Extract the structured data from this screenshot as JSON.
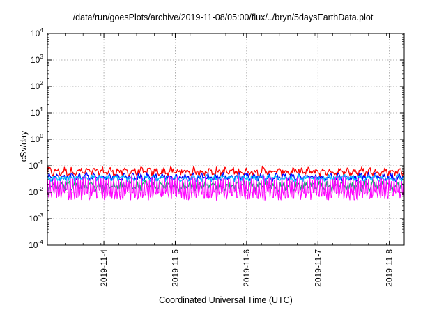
{
  "chart_data": {
    "type": "line",
    "title": "/data/run/goesPlots/archive/2019-11-08/05:00/flux/../bryn/5daysEarthData.plot",
    "xlabel": "Coordinated Universal Time (UTC)",
    "ylabel": "cSv/day",
    "yscale": "log",
    "ylim": [
      0.0001,
      10000
    ],
    "ytick_labels": [
      {
        "base": "10",
        "exp": "-4"
      },
      {
        "base": "10",
        "exp": "-3"
      },
      {
        "base": "10",
        "exp": "-2"
      },
      {
        "base": "10",
        "exp": "-1"
      },
      {
        "base": "10",
        "exp": "0"
      },
      {
        "base": "10",
        "exp": "1"
      },
      {
        "base": "10",
        "exp": "2"
      },
      {
        "base": "10",
        "exp": "3"
      },
      {
        "base": "10",
        "exp": "4"
      }
    ],
    "xlim": [
      "2019-11-03T05:00",
      "2019-11-08T05:00"
    ],
    "xtick_labels": [
      "2019-11-4",
      "2019-11-5",
      "2019-11-6",
      "2019-11-7",
      "2019-11-8"
    ],
    "grid": true,
    "series": [
      {
        "color": "#ff0000",
        "approx_range": [
          0.03,
          0.1
        ]
      },
      {
        "color": "#0000ff",
        "approx_range": [
          0.02,
          0.06
        ]
      },
      {
        "color": "#00bfff",
        "approx_range": [
          0.02,
          0.05
        ]
      },
      {
        "color": "#00c060",
        "approx_range": [
          0.008,
          0.03
        ]
      },
      {
        "color": "#ff00ff",
        "approx_range": [
          0.005,
          0.04
        ]
      }
    ]
  }
}
